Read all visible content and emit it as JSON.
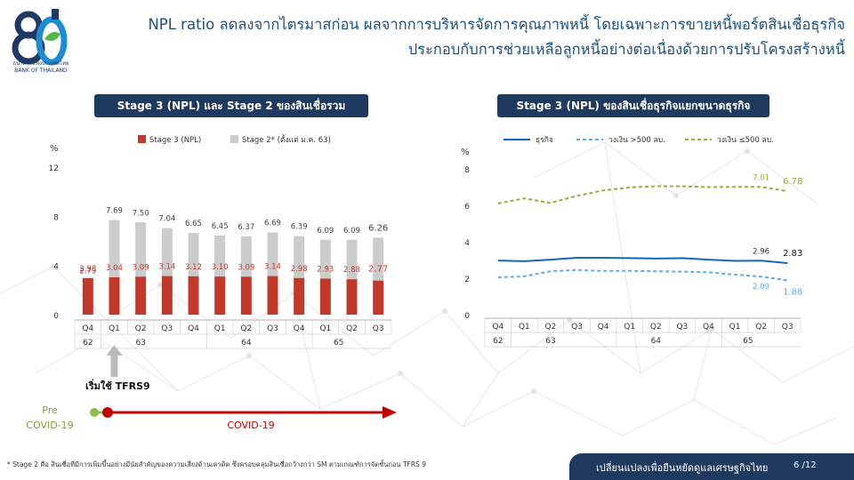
{
  "header": {
    "line1": "NPL ratio ลดลงจากไตรมาสก่อน ผลจากการบริหารจัดการคุณภาพหนี้ โดยเฉพาะการขายหนี้พอร์ตสินเชื่อธุรกิจ",
    "line2": "ประกอบกับการช่วยเหลือลูกหนี้อย่างต่อเนื่องด้วยการปรับโครงสร้างหนี้",
    "logo_text_th": "ธนาคารแห่งประเทศไทย",
    "logo_text_en": "BANK OF THAILAND"
  },
  "colors": {
    "navy": "#1f3a5f",
    "stage3": "#c0392b",
    "stage2": "#cccccc",
    "sme_all": "#1565c0",
    "sme_large": "#5dade2",
    "sme_small": "#9aab3a",
    "covid": "#c00000",
    "pre_covid": "#8dbb4e"
  },
  "chart_data": [
    {
      "type": "bar",
      "title": "Stage 3 (NPL) และ Stage 2 ของสินเชื่อรวม",
      "ylabel": "%",
      "ylim": [
        0,
        12
      ],
      "yticks": [
        "0",
        "4",
        "8",
        "12"
      ],
      "categories": [
        "Q4",
        "Q1",
        "Q2",
        "Q3",
        "Q4",
        "Q1",
        "Q2",
        "Q3",
        "Q4",
        "Q1",
        "Q2",
        "Q3"
      ],
      "years": [
        {
          "label": "62",
          "start": 0,
          "end": 0
        },
        {
          "label": "63",
          "start": 1,
          "end": 4
        },
        {
          "label": "64",
          "start": 5,
          "end": 8
        },
        {
          "label": "65",
          "start": 9,
          "end": 11
        }
      ],
      "series": [
        {
          "name": "Stage 3 (NPL)",
          "values": [
            2.98,
            3.04,
            3.09,
            3.14,
            3.12,
            3.1,
            3.09,
            3.14,
            2.98,
            2.93,
            2.88,
            2.77
          ],
          "labels": [
            "2.98",
            "3.04",
            "3.09",
            "3.14",
            "3.12",
            "3.10",
            "3.09",
            "3.14",
            "2.98",
            "2.93",
            "2.88",
            "2.77"
          ]
        },
        {
          "name": "Stage 2* (ตั้งแต่ ม.ค. 63)",
          "values": [
            2.79,
            7.69,
            7.5,
            7.04,
            6.65,
            6.45,
            6.37,
            6.69,
            6.39,
            6.09,
            6.09,
            6.26
          ],
          "labels": [
            "2.79",
            "7.69",
            "7.50",
            "7.04",
            "6.65",
            "6.45",
            "6.37",
            "6.69",
            "6.39",
            "6.09",
            "6.09",
            "6.26"
          ]
        }
      ],
      "annotation": "เริ่มใช้ TFRS9",
      "timeline": {
        "pre_label_1": "Pre",
        "pre_label_2": "COVID-19",
        "covid_label": "COVID-19"
      }
    },
    {
      "type": "line",
      "title": "Stage 3 (NPL) ของสินเชื่อธุรกิจแยกขนาดธุรกิจ",
      "ylabel": "%",
      "ylim": [
        0,
        8
      ],
      "yticks": [
        "0",
        "2",
        "4",
        "6",
        "8"
      ],
      "categories": [
        "Q4",
        "Q1",
        "Q2",
        "Q3",
        "Q4",
        "Q1",
        "Q2",
        "Q3",
        "Q4",
        "Q1",
        "Q2",
        "Q3"
      ],
      "years": [
        {
          "label": "62",
          "start": 0,
          "end": 0
        },
        {
          "label": "63",
          "start": 1,
          "end": 4
        },
        {
          "label": "64",
          "start": 5,
          "end": 8
        },
        {
          "label": "65",
          "start": 9,
          "end": 11
        }
      ],
      "series": [
        {
          "name": "ธุรกิจ",
          "values": [
            2.97,
            2.93,
            3.02,
            3.12,
            3.12,
            3.1,
            3.08,
            3.1,
            3.02,
            2.95,
            2.96,
            2.83
          ],
          "labels": {
            "10": "2.96",
            "11": "2.83"
          }
        },
        {
          "name": "วงเงิน >500 ลบ.",
          "values": [
            2.05,
            2.1,
            2.38,
            2.45,
            2.4,
            2.4,
            2.38,
            2.36,
            2.32,
            2.2,
            2.09,
            1.88
          ],
          "labels": {
            "10": "2.09",
            "11": "1.88"
          }
        },
        {
          "name": "วงเงิน ≤500 ลบ.",
          "values": [
            6.1,
            6.38,
            6.13,
            6.52,
            6.82,
            6.98,
            7.05,
            7.05,
            7.0,
            7.01,
            7.01,
            6.78
          ],
          "labels": {
            "10": "7.01",
            "11": "6.78"
          }
        }
      ]
    }
  ],
  "footer": {
    "note": "* Stage 2 คือ สินเชื่อที่มีการเพิ่มขึ้นอย่างมีนัยสำคัญของความเสี่ยงด้านเครดิต ซึ่งครอบคลุมสินเชื่อกว้างกว่า SM ตามเกณฑ์การจัดชั้นก่อน TFRS 9",
    "slogan": "เปลี่ยนแปลงเพื่อยืนหยัดดูแลเศรษฐกิจไทย",
    "page": "6 /12"
  }
}
